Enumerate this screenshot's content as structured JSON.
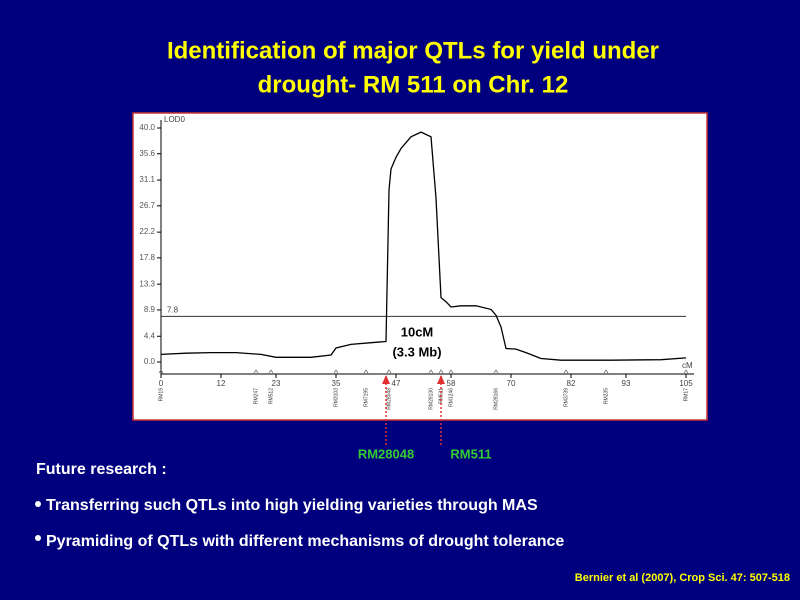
{
  "slide": {
    "title": [
      "Identification of  major QTLs for yield under",
      "drought- RM 511 on Chr. 12"
    ],
    "heading": "Future research :",
    "bullets": [
      "Transferring such QTLs into high yielding varieties through MAS",
      " Pyramiding of QTLs with different mechanisms of drought tolerance"
    ],
    "citation": "Bernier et al (2007), Crop Sci. 47: 507-518"
  },
  "chart_data": {
    "type": "line",
    "y_label": "LOD0",
    "x_label": "cM",
    "color": "#000000",
    "x": [
      0,
      5,
      10,
      15,
      20,
      23,
      30,
      34,
      35,
      38,
      42,
      45,
      45.6,
      46,
      47,
      48,
      50,
      52,
      54,
      55,
      56,
      57,
      58,
      60,
      63,
      66,
      67,
      68,
      69,
      71,
      73,
      76,
      80,
      90,
      100,
      105
    ],
    "values": [
      1.3,
      1.5,
      1.6,
      1.6,
      1.3,
      0.8,
      0.8,
      1.2,
      2.4,
      3.0,
      3.3,
      3.5,
      29.4,
      33,
      35,
      36.5,
      38.5,
      39.3,
      38.5,
      28,
      11,
      10.3,
      9.4,
      9.6,
      9.6,
      9,
      8,
      6,
      2.3,
      2.2,
      1.6,
      0.6,
      0.3,
      0.3,
      0.4,
      0.7
    ],
    "xlim": [
      0,
      105
    ],
    "xticks": [
      0,
      12,
      23,
      35,
      47,
      58,
      70,
      82,
      93,
      105
    ],
    "ylim": [
      0,
      40
    ],
    "yticks": [
      {
        "value": 0,
        "label": "0.0"
      },
      4.4,
      8.9,
      13.3,
      17.8,
      22.2,
      26.7,
      31.1,
      35.6,
      {
        "value": 40,
        "label": "40.0"
      }
    ],
    "threshold": 7.8,
    "annotation": [
      "10cM",
      "(3.3 Mb)"
    ],
    "markers": {
      "names": [
        "RM19",
        "RM247",
        "RM512",
        "RM3103",
        "RM7195",
        "RM28048",
        "RM28130",
        "RM511",
        "RM1246",
        "RM28166",
        "RM3739",
        "RM235",
        "RM17"
      ],
      "x": [
        0,
        19,
        22,
        35,
        41,
        45.6,
        54,
        56,
        58,
        67,
        81,
        89,
        105
      ]
    },
    "arrows": {
      "labels": [
        "RM28048",
        "RM511"
      ],
      "x": [
        45,
        56
      ]
    }
  }
}
